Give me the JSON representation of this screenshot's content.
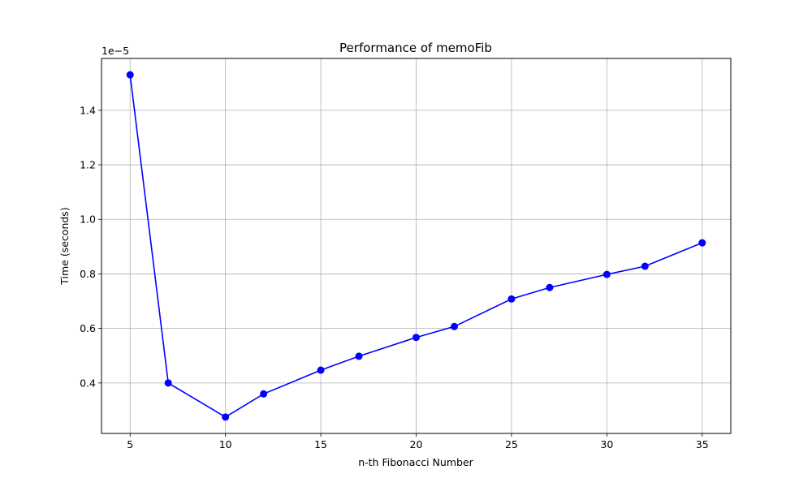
{
  "chart_data": {
    "type": "line",
    "title": "Performance of memoFib",
    "xlabel": "n-th Fibonacci Number",
    "ylabel": "Time (seconds)",
    "y_offset_label": "1e−5",
    "y_scale_exponent": -5,
    "grid": true,
    "xlim": [
      3.5,
      36.5
    ],
    "ylim": [
      0.215,
      1.59
    ],
    "x_ticks": [
      5,
      10,
      15,
      20,
      25,
      30,
      35
    ],
    "x_tick_labels": [
      "5",
      "10",
      "15",
      "20",
      "25",
      "30",
      "35"
    ],
    "y_ticks": [
      0.4,
      0.6,
      0.8,
      1.0,
      1.2,
      1.4
    ],
    "y_tick_labels": [
      "0.4",
      "0.6",
      "0.8",
      "1.0",
      "1.2",
      "1.4"
    ],
    "series": [
      {
        "color": "#0000ff",
        "marker": "circle",
        "x": [
          5,
          7,
          10,
          12,
          15,
          17,
          20,
          22,
          25,
          27,
          30,
          32,
          35
        ],
        "y": [
          1.53,
          0.4,
          0.275,
          0.36,
          0.447,
          0.498,
          0.567,
          0.607,
          0.708,
          0.75,
          0.798,
          0.828,
          0.914
        ]
      }
    ]
  }
}
